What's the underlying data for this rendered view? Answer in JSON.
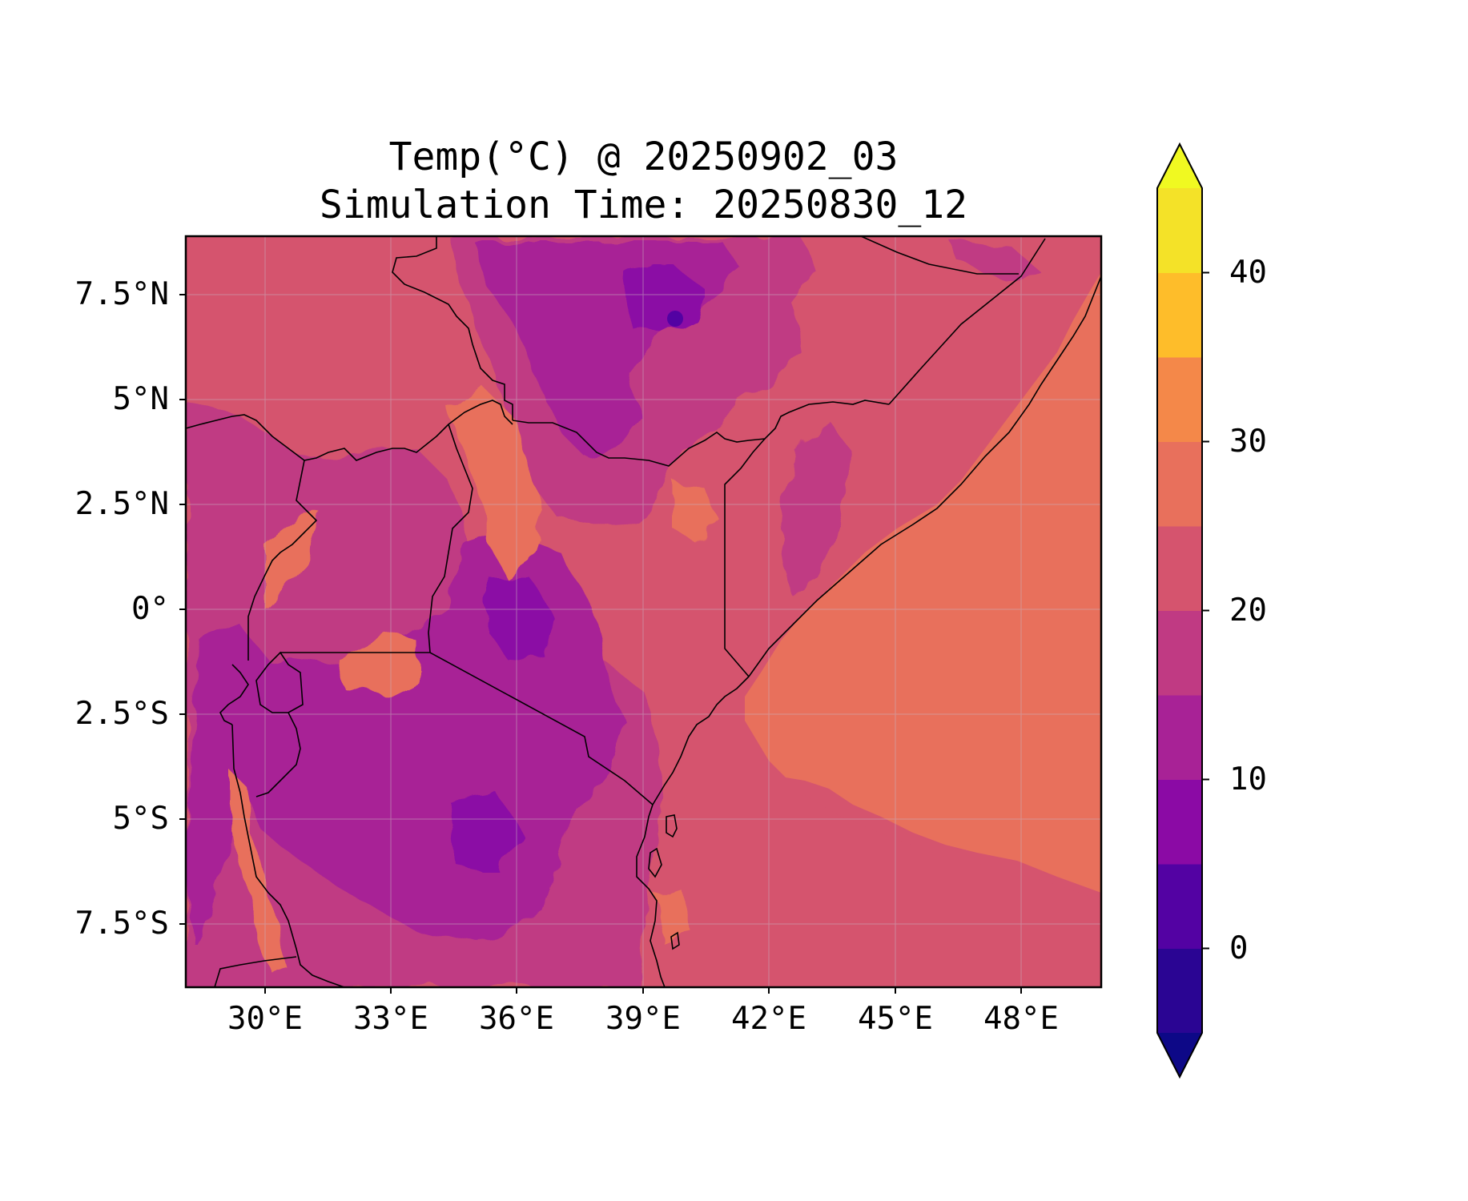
{
  "title": {
    "line1": "Temp(°C) @ 20250902_03",
    "line2": "Simulation Time: 20250830_12"
  },
  "chart_data": {
    "type": "heatmap",
    "variable_units": "°C",
    "xlim": [
      27.8,
      50.8
    ],
    "ylim": [
      -9.0,
      9.0
    ],
    "x_ticks": [
      {
        "value": 30,
        "label": "30°E"
      },
      {
        "value": 33,
        "label": "33°E"
      },
      {
        "value": 36,
        "label": "36°E"
      },
      {
        "value": 39,
        "label": "39°E"
      },
      {
        "value": 42,
        "label": "42°E"
      },
      {
        "value": 45,
        "label": "45°E"
      },
      {
        "value": 48,
        "label": "48°E"
      }
    ],
    "y_ticks": [
      {
        "value": 7.5,
        "label": "7.5°N"
      },
      {
        "value": 5,
        "label": "5°N"
      },
      {
        "value": 2.5,
        "label": "2.5°N"
      },
      {
        "value": 0,
        "label": "0°"
      },
      {
        "value": -2.5,
        "label": "2.5°S"
      },
      {
        "value": -5,
        "label": "5°S"
      },
      {
        "value": -7.5,
        "label": "7.5°S"
      }
    ],
    "grid": true,
    "colorbar": {
      "levels": [
        -5,
        0,
        5,
        10,
        15,
        20,
        25,
        30,
        35,
        40,
        45
      ],
      "tick_values": [
        0,
        10,
        20,
        30,
        40
      ],
      "tick_labels": [
        "0",
        "10",
        "20",
        "30",
        "40"
      ],
      "extend": "both",
      "under_color": "#0d0887",
      "over_color": "#f0f921",
      "colors": [
        "#2a0593",
        "#5302a3",
        "#8b0aa5",
        "#a82296",
        "#c03a83",
        "#d5546e",
        "#e8705c",
        "#f48849",
        "#febd2a",
        "#f4e228"
      ]
    }
  }
}
